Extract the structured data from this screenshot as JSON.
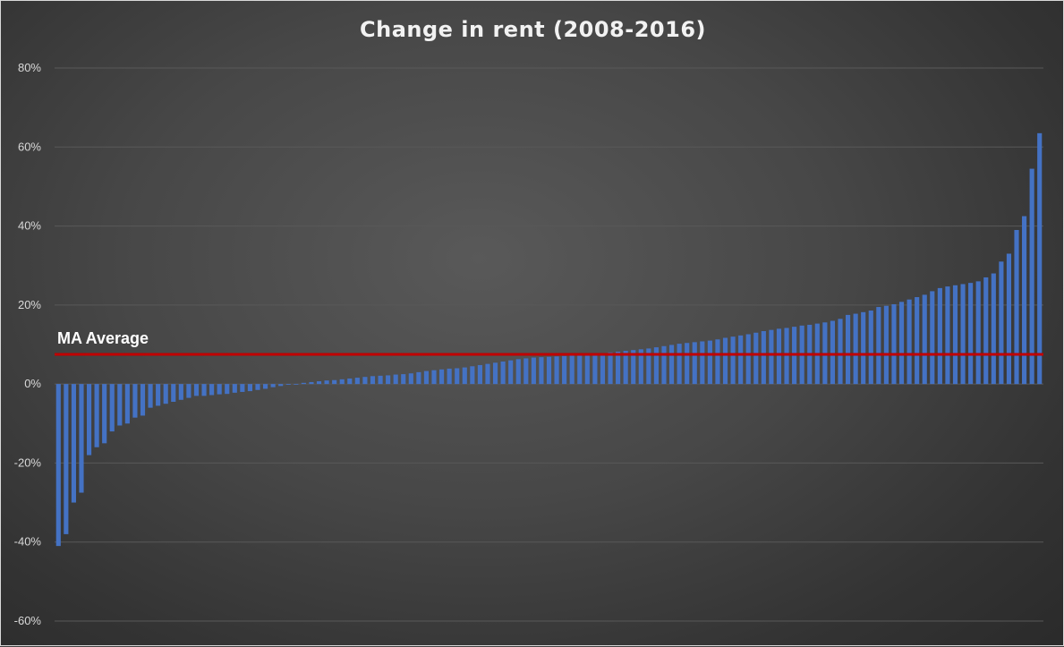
{
  "chart_data": {
    "type": "bar",
    "title": "Change in rent (2008-2016)",
    "xlabel": "",
    "ylabel": "",
    "ylim": [
      -60,
      80
    ],
    "y_ticks": [
      80,
      60,
      40,
      20,
      0,
      -20,
      -40,
      -60
    ],
    "y_tick_labels": [
      "80%",
      "60%",
      "40%",
      "20%",
      "0%",
      "-20%",
      "-40%",
      "-60%"
    ],
    "grid": true,
    "legend": "none",
    "colors": {
      "bar": "#4472c4",
      "reference_line": "#c00000",
      "gridline": "#595959"
    },
    "reference_line": {
      "label": "MA Average",
      "value": 7.5
    },
    "values": [
      -41,
      -38,
      -30,
      -27.5,
      -18,
      -16,
      -15,
      -12,
      -10.5,
      -10,
      -8.5,
      -8,
      -6,
      -5.5,
      -5,
      -4.5,
      -4,
      -3.5,
      -3,
      -3,
      -2.8,
      -2.6,
      -2.5,
      -2.2,
      -2,
      -1.8,
      -1.5,
      -1.2,
      -0.8,
      -0.5,
      -0.2,
      0,
      0.3,
      0.5,
      0.7,
      0.9,
      1,
      1.2,
      1.4,
      1.6,
      1.8,
      2,
      2.1,
      2.2,
      2.4,
      2.5,
      2.7,
      3,
      3.3,
      3.5,
      3.7,
      3.9,
      4,
      4.2,
      4.5,
      4.8,
      5.1,
      5.4,
      5.7,
      6,
      6.3,
      6.5,
      6.7,
      6.8,
      6.9,
      7,
      7.1,
      7.2,
      7.3,
      7.4,
      7.6,
      7.8,
      8,
      8.2,
      8.4,
      8.6,
      8.8,
      9,
      9.3,
      9.6,
      9.9,
      10.2,
      10.4,
      10.6,
      10.8,
      11,
      11.3,
      11.7,
      12,
      12.3,
      12.6,
      13,
      13.4,
      13.7,
      14,
      14.2,
      14.5,
      14.8,
      15,
      15.3,
      15.6,
      16,
      16.5,
      17.5,
      17.8,
      18.2,
      18.6,
      19.5,
      19.8,
      20.2,
      20.8,
      21.4,
      22,
      22.6,
      23.5,
      24.3,
      24.7,
      25,
      25.3,
      25.6,
      26,
      27,
      28,
      31,
      33,
      39,
      42.5,
      54.5,
      63.5
    ]
  }
}
